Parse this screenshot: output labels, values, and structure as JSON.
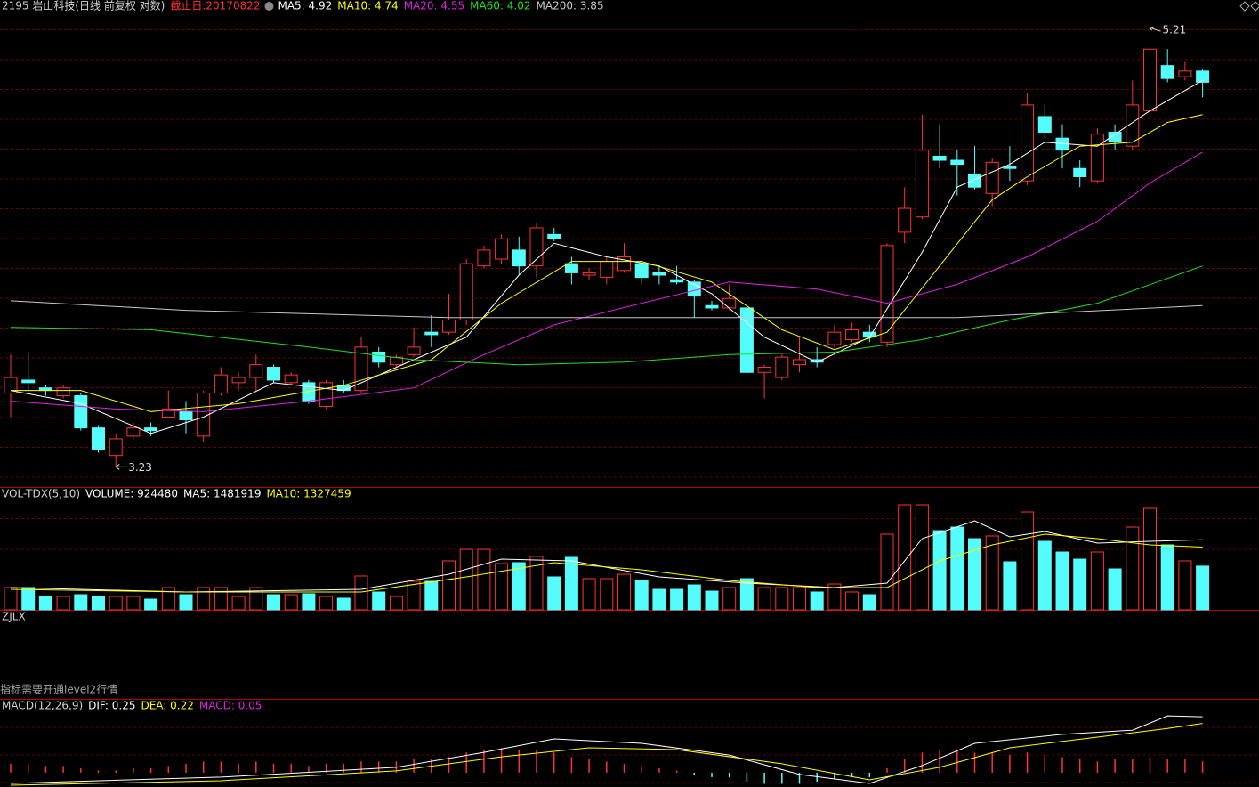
{
  "chart_data": [
    {
      "type": "candlestick",
      "title": "2195 岩山科技(日线 前复权 对数)",
      "subtitle": "截止日:20170822",
      "log_scale": true,
      "ylim": [
        3.16,
        5.37
      ],
      "up_color": "#ff3232",
      "down_color": "#54fcfc",
      "grid": true,
      "open": [
        3.5,
        3.55,
        3.52,
        3.49,
        3.49,
        3.37,
        3.27,
        3.34,
        3.37,
        3.41,
        3.43,
        3.34,
        3.5,
        3.54,
        3.56,
        3.6,
        3.54,
        3.54,
        3.45,
        3.53,
        3.51,
        3.66,
        3.61,
        3.65,
        3.74,
        3.74,
        3.79,
        4.02,
        4.05,
        4.09,
        4.02,
        4.16,
        4.03,
        3.98,
        3.97,
        4.0,
        4.03,
        3.99,
        3.96,
        3.95,
        3.85,
        3.84,
        3.84,
        3.58,
        3.56,
        3.61,
        3.63,
        3.69,
        3.71,
        3.74,
        3.7,
        4.17,
        4.24,
        4.53,
        4.51,
        4.44,
        4.35,
        4.48,
        4.41,
        4.73,
        4.62,
        4.47,
        4.41,
        4.65,
        4.58,
        4.76,
        5.0,
        4.94,
        4.97
      ],
      "high": [
        3.65,
        3.66,
        3.53,
        3.53,
        3.5,
        3.38,
        3.35,
        3.39,
        3.39,
        3.51,
        3.47,
        3.51,
        3.6,
        3.58,
        3.65,
        3.61,
        3.58,
        3.55,
        3.55,
        3.55,
        3.72,
        3.68,
        3.65,
        3.76,
        3.81,
        3.9,
        4.05,
        4.11,
        4.16,
        4.15,
        4.21,
        4.19,
        4.06,
        4.01,
        4.06,
        4.12,
        4.04,
        4.02,
        4.02,
        3.96,
        3.87,
        3.94,
        3.85,
        3.61,
        3.65,
        3.72,
        3.68,
        3.77,
        3.78,
        3.77,
        4.12,
        4.38,
        4.74,
        4.69,
        4.56,
        4.58,
        4.52,
        4.58,
        4.85,
        4.79,
        4.69,
        4.51,
        4.67,
        4.69,
        4.92,
        5.21,
        5.09,
        5.02,
        4.98
      ],
      "low": [
        3.41,
        3.51,
        3.49,
        3.48,
        3.36,
        3.28,
        3.23,
        3.33,
        3.34,
        3.41,
        3.35,
        3.32,
        3.49,
        3.51,
        3.51,
        3.54,
        3.53,
        3.46,
        3.44,
        3.5,
        3.5,
        3.6,
        3.6,
        3.64,
        3.68,
        3.73,
        3.77,
        4.01,
        4.03,
        3.98,
        3.97,
        4.13,
        3.94,
        3.96,
        3.94,
        3.99,
        3.94,
        3.94,
        3.94,
        3.8,
        3.83,
        3.83,
        3.57,
        3.48,
        3.55,
        3.58,
        3.6,
        3.68,
        3.7,
        3.7,
        3.68,
        4.12,
        4.23,
        4.47,
        4.34,
        4.37,
        4.29,
        4.41,
        4.39,
        4.62,
        4.47,
        4.38,
        4.4,
        4.56,
        4.56,
        4.74,
        4.91,
        4.92,
        4.83
      ],
      "close": [
        3.56,
        3.54,
        3.51,
        3.52,
        3.37,
        3.29,
        3.33,
        3.37,
        3.36,
        3.44,
        3.4,
        3.5,
        3.57,
        3.56,
        3.61,
        3.55,
        3.57,
        3.47,
        3.54,
        3.51,
        3.68,
        3.62,
        3.64,
        3.68,
        3.73,
        3.79,
        4.03,
        4.09,
        4.14,
        4.02,
        4.19,
        4.14,
        3.99,
        3.99,
        4.04,
        4.06,
        3.97,
        3.98,
        3.95,
        3.89,
        3.84,
        3.88,
        3.58,
        3.6,
        3.64,
        3.63,
        3.62,
        3.74,
        3.75,
        3.72,
        4.11,
        4.28,
        4.56,
        4.51,
        4.49,
        4.38,
        4.5,
        4.47,
        4.79,
        4.65,
        4.56,
        4.43,
        4.64,
        4.6,
        4.79,
        5.09,
        4.93,
        4.97,
        4.91
      ],
      "max_label": 5.21,
      "min_label": 3.23,
      "series": [
        {
          "name": "MA5",
          "legend": "MA5: 4.92",
          "color": "#ffffff",
          "x": [
            0,
            4,
            8,
            11,
            15,
            19,
            23,
            26,
            29,
            31,
            34,
            37,
            40,
            43,
            46,
            49,
            52,
            54,
            57,
            59,
            62,
            65,
            68
          ],
          "values": [
            3.51,
            3.46,
            3.35,
            3.41,
            3.54,
            3.51,
            3.63,
            3.72,
            3.98,
            4.12,
            4.06,
            4.02,
            3.9,
            3.72,
            3.62,
            3.72,
            4.08,
            4.38,
            4.49,
            4.6,
            4.58,
            4.76,
            4.92
          ]
        },
        {
          "name": "MA10",
          "legend": "MA10: 4.74",
          "color": "#ffff00",
          "x": [
            0,
            4,
            8,
            13,
            19,
            24,
            28,
            32,
            36,
            40,
            44,
            47,
            50,
            53,
            56,
            58,
            61,
            64,
            66,
            68
          ],
          "values": [
            3.51,
            3.51,
            3.43,
            3.46,
            3.53,
            3.63,
            3.86,
            4.04,
            4.04,
            3.95,
            3.75,
            3.67,
            3.74,
            4.02,
            4.32,
            4.43,
            4.58,
            4.6,
            4.7,
            4.74
          ]
        },
        {
          "name": "MA20",
          "legend": "MA20: 4.55",
          "color": "#e020e0",
          "x": [
            0,
            6,
            11,
            17,
            23,
            27,
            31,
            36,
            41,
            46,
            50,
            54,
            58,
            62,
            65,
            68
          ],
          "values": [
            3.47,
            3.44,
            3.43,
            3.47,
            3.52,
            3.65,
            3.77,
            3.86,
            3.95,
            3.92,
            3.86,
            3.94,
            4.06,
            4.22,
            4.4,
            4.55
          ]
        },
        {
          "name": "MA60",
          "legend": "MA60: 4.02",
          "color": "#20e020",
          "x": [
            0,
            8,
            17,
            23,
            29,
            35,
            41,
            47,
            52,
            57,
            62,
            68
          ],
          "values": [
            3.76,
            3.75,
            3.68,
            3.63,
            3.61,
            3.62,
            3.65,
            3.66,
            3.71,
            3.79,
            3.86,
            4.02
          ]
        },
        {
          "name": "MA200",
          "legend": "MA200: 3.85",
          "color": "#c8c8c8",
          "x": [
            0,
            10,
            25,
            40,
            54,
            68
          ],
          "values": [
            3.87,
            3.83,
            3.8,
            3.8,
            3.8,
            3.85
          ]
        }
      ]
    },
    {
      "type": "bar",
      "title": "VOL-TDX(5,10)",
      "legend": "VOLUME: 924480",
      "legend_color": "#ffffff",
      "ylim": [
        0,
        2580000
      ],
      "grid": true,
      "values": [
        471000,
        471000,
        282000,
        282000,
        320000,
        282000,
        282000,
        282000,
        226000,
        471000,
        320000,
        471000,
        471000,
        282000,
        471000,
        320000,
        320000,
        339000,
        282000,
        245000,
        716000,
        377000,
        282000,
        603000,
        603000,
        1036000,
        1280000,
        1280000,
        979000,
        998000,
        1130000,
        697000,
        1111000,
        659000,
        659000,
        753000,
        621000,
        433000,
        433000,
        527000,
        395000,
        471000,
        659000,
        471000,
        471000,
        471000,
        377000,
        546000,
        377000,
        320000,
        1601000,
        2222000,
        2222000,
        1676000,
        1751000,
        1506000,
        1563000,
        1017000,
        2071000,
        1450000,
        1224000,
        1073000,
        1224000,
        866000,
        1751000,
        2147000,
        1375000,
        1036000,
        924480
      ],
      "series": [
        {
          "name": "MA5",
          "legend": "MA5: 1481919",
          "color": "#ffffff",
          "x": [
            0,
            10,
            20,
            25,
            28,
            32,
            37,
            42,
            47,
            50,
            52,
            55,
            57,
            59,
            62,
            65,
            68
          ],
          "values": [
            471000,
            377000,
            433000,
            753000,
            1073000,
            1036000,
            697000,
            565000,
            471000,
            565000,
            1506000,
            1883000,
            1544000,
            1657000,
            1412000,
            1450000,
            1481919
          ]
        },
        {
          "name": "MA10",
          "legend": "MA10: 1327459",
          "color": "#ffff00",
          "x": [
            0,
            10,
            20,
            26,
            31,
            36,
            41,
            46,
            50,
            53,
            56,
            59,
            62,
            65,
            68
          ],
          "values": [
            433000,
            377000,
            377000,
            697000,
            998000,
            847000,
            621000,
            471000,
            471000,
            1036000,
            1375000,
            1601000,
            1506000,
            1375000,
            1327459
          ]
        }
      ]
    },
    {
      "type": "text",
      "title": "ZJLX",
      "note": "指标需要开通level2行情"
    },
    {
      "type": "bar",
      "title": "MACD(12,26,9)",
      "legend": "MACD: 0.05",
      "legend_color": "#e020e0",
      "ylim": [
        -0.064,
        0.326
      ],
      "up_color": "#ff3232",
      "down_color": "#54fcfc",
      "grid": true,
      "values": [
        0.04,
        0.04,
        0.03,
        0.03,
        0.02,
        0.01,
        0.01,
        0.02,
        0.02,
        0.03,
        0.04,
        0.05,
        0.05,
        0.04,
        0.05,
        0.04,
        0.04,
        0.03,
        0.04,
        0.04,
        0.05,
        0.05,
        0.05,
        0.06,
        0.06,
        0.07,
        0.09,
        0.1,
        0.11,
        0.1,
        0.1,
        0.09,
        0.07,
        0.06,
        0.05,
        0.04,
        0.03,
        0.02,
        0.01,
        -0.01,
        -0.02,
        -0.02,
        -0.04,
        -0.05,
        -0.05,
        -0.05,
        -0.04,
        -0.03,
        -0.02,
        -0.02,
        0.02,
        0.06,
        0.09,
        0.1,
        0.1,
        0.09,
        0.09,
        0.08,
        0.09,
        0.08,
        0.07,
        0.06,
        0.05,
        0.06,
        0.06,
        0.07,
        0.06,
        0.06,
        0.05
      ],
      "series": [
        {
          "name": "DIF",
          "legend": "DIF: 0.25",
          "color": "#ffffff",
          "x": [
            0,
            12,
            22,
            27,
            31,
            36,
            41,
            45,
            49,
            52,
            55,
            60,
            64,
            66,
            68
          ],
          "values": [
            -0.048,
            -0.02,
            0.024,
            0.091,
            0.151,
            0.131,
            0.079,
            -0.008,
            -0.048,
            0.032,
            0.131,
            0.171,
            0.19,
            0.254,
            0.25
          ]
        },
        {
          "name": "DEA",
          "legend": "DEA: 0.22",
          "color": "#ffff00",
          "x": [
            0,
            12,
            22,
            28,
            33,
            38,
            44,
            49,
            53,
            57,
            62,
            66,
            68
          ],
          "values": [
            -0.056,
            -0.036,
            0.008,
            0.071,
            0.111,
            0.103,
            0.04,
            -0.032,
            0.024,
            0.111,
            0.159,
            0.198,
            0.22
          ]
        }
      ]
    }
  ]
}
